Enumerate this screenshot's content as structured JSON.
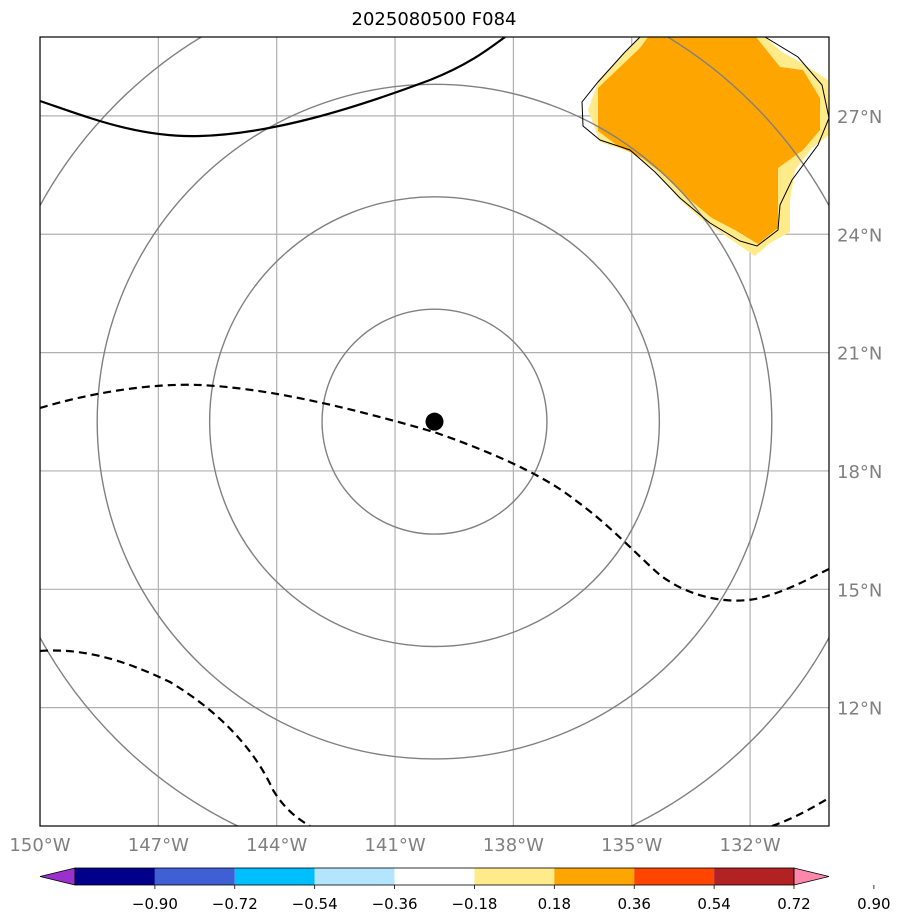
{
  "title": "2025080500 F084",
  "map": {
    "lon_range": [
      -150,
      -130
    ],
    "lat_range": [
      9,
      29
    ],
    "lon_ticks": [
      {
        "value": -150,
        "label": "150°W"
      },
      {
        "value": -147,
        "label": "147°W"
      },
      {
        "value": -144,
        "label": "144°W"
      },
      {
        "value": -141,
        "label": "141°W"
      },
      {
        "value": -138,
        "label": "138°W"
      },
      {
        "value": -135,
        "label": "135°W"
      },
      {
        "value": -132,
        "label": "132°W"
      }
    ],
    "lat_ticks": [
      {
        "value": 12,
        "label": "12°N"
      },
      {
        "value": 15,
        "label": "15°N"
      },
      {
        "value": 18,
        "label": "18°N"
      },
      {
        "value": 21,
        "label": "21°N"
      },
      {
        "value": 24,
        "label": "24°N"
      },
      {
        "value": 27,
        "label": "27°N"
      }
    ],
    "center": {
      "lon": -140.0,
      "lat": 19.25
    },
    "range_ring_radii_deg": [
      2.85,
      5.7,
      8.55,
      11.4
    ],
    "colors": {
      "gridline": "#b0b0b0",
      "ring": "#808080",
      "tick_label": "#808080",
      "contour": "#000000",
      "orange_fill": "#ffa500",
      "yellow_fill": "#ffeb8a"
    }
  },
  "colorbar": {
    "tick_labels": [
      "−0.90",
      "−0.72",
      "−0.54",
      "−0.36",
      "−0.18",
      "0.18",
      "0.36",
      "0.54",
      "0.72",
      "0.90"
    ],
    "colors": [
      "#9932cc",
      "#00008b",
      "#3f5fd4",
      "#00bfff",
      "#b3e5ff",
      "#ffffff",
      "#ffeb8a",
      "#ffa500",
      "#ff4500",
      "#b22222",
      "#ff88aa"
    ]
  }
}
